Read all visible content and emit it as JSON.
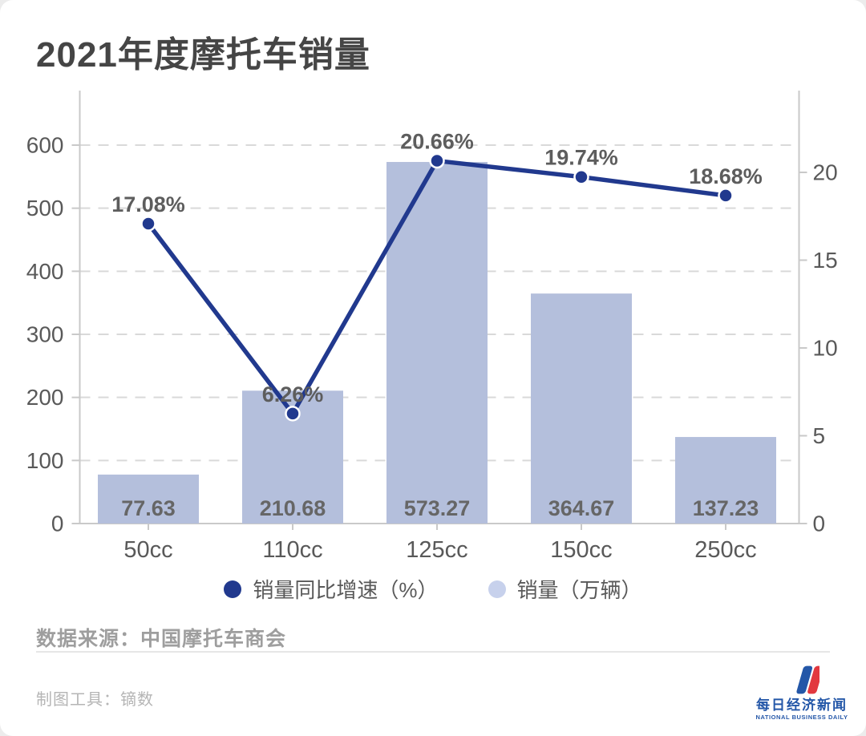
{
  "title": "2021年度摩托车销量",
  "chart_data": {
    "type": "bar+line",
    "categories": [
      "50cc",
      "110cc",
      "125cc",
      "150cc",
      "250cc"
    ],
    "series": [
      {
        "name": "销量同比增速（%）",
        "type": "line",
        "axis": "right",
        "values": [
          17.08,
          6.26,
          20.66,
          19.74,
          18.68
        ],
        "point_labels": [
          "17.08%",
          "6.26%",
          "20.66%",
          "19.74%",
          "18.68%"
        ]
      },
      {
        "name": "销量（万辆）",
        "type": "bar",
        "axis": "left",
        "values": [
          77.63,
          210.68,
          573.27,
          364.67,
          137.23
        ],
        "bar_labels": [
          "77.63",
          "210.68",
          "573.27",
          "364.67",
          "137.23"
        ]
      }
    ],
    "left_axis": {
      "ticks": [
        0,
        100,
        200,
        300,
        400,
        500,
        600
      ],
      "range": [
        0,
        600
      ]
    },
    "right_axis": {
      "ticks": [
        0,
        5,
        10,
        15,
        20
      ],
      "range": [
        0,
        20
      ]
    },
    "grid": "horizontal dashed"
  },
  "colors": {
    "bar": "#b4bfdc",
    "line": "#21398e",
    "marker_ring": "#ffffff",
    "grid": "#d9d9d9",
    "axis": "#c9c9c9",
    "tick_label": "#595959",
    "bar_label": "#666666",
    "point_label": "#5d5d5d",
    "legend_line_dot": "#21398e",
    "legend_bar_dot": "#c7d1ec"
  },
  "legend": [
    {
      "label": "销量同比增速（%）"
    },
    {
      "label": "销量（万辆）"
    }
  ],
  "footer": {
    "source": "数据来源：中国摩托车商会",
    "tool": "制图工具：镝数"
  },
  "logo": {
    "cn": "每日经济新闻",
    "en": "NATIONAL BUSINESS DAILY",
    "blue": "#2457a8",
    "red": "#e2383f"
  }
}
